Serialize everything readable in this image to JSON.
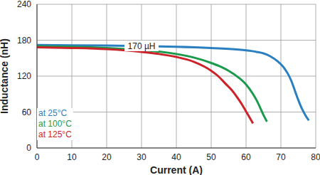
{
  "chart_data": {
    "type": "line",
    "x_label": "Current (A)",
    "y_label": "Inductance (nH)",
    "xlim": [
      0,
      80
    ],
    "xticks": [
      0,
      10,
      20,
      30,
      40,
      50,
      60,
      70,
      80
    ],
    "ylim": [
      0,
      240
    ],
    "yticks": [
      0,
      60,
      120,
      180,
      240
    ],
    "grid": true,
    "legend": "lower left",
    "annotations": [
      {
        "text": "170 µH",
        "x": 30,
        "y": 170
      }
    ],
    "series": [
      {
        "name": "at 25°C",
        "color": "#2a7fc1",
        "x": [
          0,
          10,
          20,
          30,
          40,
          50,
          55,
          60,
          63,
          65,
          67,
          69,
          71,
          72,
          73,
          74,
          75,
          76,
          77,
          78
        ],
        "values": [
          172,
          171.5,
          171,
          170,
          169,
          167,
          165.5,
          163,
          160.5,
          158,
          153,
          145,
          133,
          124,
          112,
          96,
          80,
          66,
          55,
          46
        ]
      },
      {
        "name": "at 100°C",
        "color": "#1a9a4a",
        "x": [
          0,
          10,
          20,
          30,
          35,
          40,
          45,
          50,
          53,
          55,
          58,
          60,
          62,
          63,
          64,
          65,
          66
        ],
        "values": [
          170,
          169,
          167,
          163.5,
          161,
          157,
          151,
          142,
          135,
          129,
          117,
          106,
          90,
          80,
          68,
          55,
          44
        ]
      },
      {
        "name": "at 125°C",
        "color": "#cc2229",
        "x": [
          0,
          10,
          20,
          30,
          35,
          40,
          45,
          48,
          50,
          52,
          54,
          56,
          58,
          59,
          60,
          61,
          62
        ],
        "values": [
          168,
          167,
          165,
          160.5,
          157,
          152,
          144,
          136,
          129,
          120,
          108,
          96,
          80,
          71,
          61,
          51,
          41
        ]
      }
    ]
  }
}
